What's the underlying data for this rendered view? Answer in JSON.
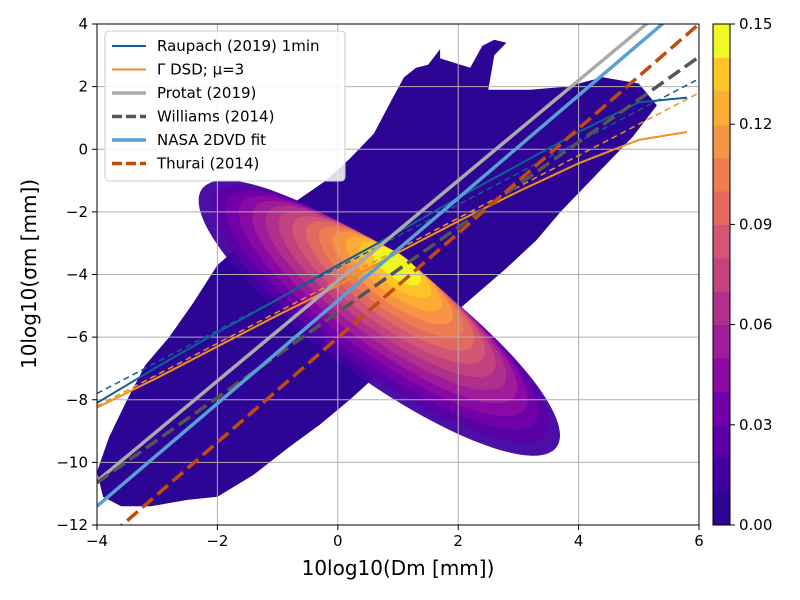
{
  "chart_data": {
    "type": "heatmap",
    "title": "",
    "xlabel": "10log10(Dm [mm])",
    "ylabel": "10log10(σm [mm])",
    "xlim": [
      -4,
      6
    ],
    "ylim": [
      -12,
      4
    ],
    "x_ticks": [
      "−4",
      "−2",
      "0",
      "2",
      "4",
      "6"
    ],
    "x_tick_values": [
      -4,
      -2,
      0,
      2,
      4,
      6
    ],
    "y_ticks": [
      "−12",
      "−10",
      "−8",
      "−6",
      "−4",
      "−2",
      "0",
      "2",
      "4"
    ],
    "y_tick_values": [
      -12,
      -10,
      -8,
      -6,
      -4,
      -2,
      0,
      2,
      4
    ],
    "grid": true,
    "legend_position": "top-left",
    "colorbar": {
      "range": [
        0,
        0.15
      ],
      "tick_labels": [
        "0.00",
        "0.03",
        "0.06",
        "0.09",
        "0.12",
        "0.15"
      ],
      "tick_values": [
        0,
        0.03,
        0.06,
        0.09,
        0.12,
        0.15
      ],
      "colormap": "plasma",
      "levels": 15
    },
    "density": {
      "description": "2D joint frequency of (10log10 Dm, 10log10 sigma_m), filled contours",
      "peak": {
        "x": 1.0,
        "y": -3.6,
        "value": 0.15
      },
      "extent_x": [
        -3.9,
        5.9
      ],
      "extent_y": [
        -11.4,
        3.5
      ]
    },
    "series": [
      {
        "name": "Raupach (2019) 1min",
        "color": "#0f5f96",
        "style": "solid",
        "width": 2,
        "x": [
          -4,
          -3,
          -2,
          -1,
          0,
          1,
          2,
          3,
          4,
          5,
          5.8
        ],
        "y": [
          -8.1,
          -6.95,
          -5.85,
          -4.8,
          -3.7,
          -2.65,
          -1.55,
          -0.5,
          0.55,
          1.5,
          1.65
        ]
      },
      {
        "name": "",
        "color": "#0f5f96",
        "style": "dashed-thin",
        "width": 1.5,
        "x": [
          -4,
          6
        ],
        "y": [
          -7.8,
          2.25
        ]
      },
      {
        "name": "Γ DSD; μ=3",
        "color": "#f28f22",
        "style": "solid",
        "width": 2,
        "x": [
          -4,
          -3,
          -2,
          -1,
          0,
          1,
          2,
          3,
          4,
          5,
          5.8
        ],
        "y": [
          -8.25,
          -7.3,
          -6.3,
          -5.3,
          -4.35,
          -3.3,
          -2.3,
          -1.35,
          -0.45,
          0.3,
          0.55
        ]
      },
      {
        "name": "",
        "color": "#f28f22",
        "style": "dashed-thin",
        "width": 1.5,
        "x": [
          -4,
          6
        ],
        "y": [
          -8.2,
          1.8
        ]
      },
      {
        "name": "Protat (2019)",
        "color": "#aaaaaa",
        "style": "solid",
        "width": 3.5,
        "x": [
          -4,
          6
        ],
        "y": [
          -10.6,
          5.4
        ]
      },
      {
        "name": "Williams (2014)",
        "color": "#555555",
        "style": "dashed",
        "width": 3.5,
        "x": [
          -4,
          6
        ],
        "y": [
          -10.65,
          2.95
        ]
      },
      {
        "name": "NASA 2DVD fit",
        "color": "#5a9fd4",
        "style": "solid",
        "width": 3.5,
        "x": [
          -4,
          6
        ],
        "y": [
          -11.4,
          5.0
        ]
      },
      {
        "name": "Thurai (2014)",
        "color": "#c44a0c",
        "style": "dashed",
        "width": 3.5,
        "x": [
          -4,
          6
        ],
        "y": [
          -12.7,
          4.0
        ]
      }
    ]
  }
}
